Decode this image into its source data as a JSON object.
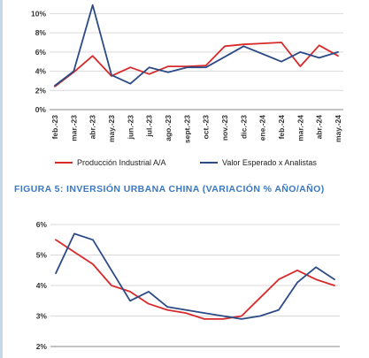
{
  "figure5_title": "FIGURA 5: INVERSIÓN URBANA CHINA (VARIACIÓN % AÑO/AÑO)",
  "colors": {
    "series_red": "#d82a2a",
    "series_blue": "#2c4a86",
    "grid": "#d9d9d9",
    "axis": "#888888"
  },
  "chart_data": [
    {
      "type": "line",
      "title": "",
      "x": [
        "feb.-23",
        "mar.-23",
        "abr.-23",
        "may.-23",
        "jun.-23",
        "jul.-23",
        "ago.-23",
        "sept.-23",
        "oct.-23",
        "nov.-23",
        "dic.-23",
        "ene.-24",
        "feb.-24",
        "mar.-24",
        "abr.-24",
        "may.-24"
      ],
      "x_tick_labels": [
        "feb.-23",
        "mar.-23",
        "abr.-23",
        "may.-23",
        "jun.-23",
        "jul.-23",
        "ago.-23",
        "sept.-23",
        "oct.-23",
        "nov.-23",
        "dic.-23",
        "ene.-24",
        "feb.-24",
        "mar.-24",
        "abr.-24",
        "may.-24"
      ],
      "y_tick_labels": [
        "0%",
        "2%",
        "4%",
        "6%",
        "8%",
        "10%"
      ],
      "ylim": [
        0,
        10.5
      ],
      "yticks": [
        0,
        2,
        4,
        6,
        8,
        10
      ],
      "grid": true,
      "legend_position": "bottom",
      "series": [
        {
          "name": "Producción Industrial A/A",
          "color": "#d82a2a",
          "values": [
            2.4,
            3.9,
            5.6,
            3.5,
            4.4,
            3.7,
            4.5,
            4.5,
            4.6,
            6.6,
            6.8,
            6.9,
            7.0,
            4.5,
            6.7,
            5.6
          ]
        },
        {
          "name": "Valor Esperado x Analistas",
          "color": "#2c4a86",
          "values": [
            2.5,
            4.0,
            10.9,
            3.6,
            2.7,
            4.4,
            3.9,
            4.4,
            4.4,
            5.5,
            6.6,
            5.8,
            5.0,
            6.0,
            5.4,
            6.0
          ]
        }
      ]
    },
    {
      "type": "line",
      "title": "FIGURA 5: INVERSIÓN URBANA CHINA (VARIACIÓN % AÑO/AÑO)",
      "y_tick_labels": [
        "2%",
        "3%",
        "4%",
        "5%",
        "6%"
      ],
      "ylim": [
        2,
        6
      ],
      "yticks": [
        2,
        3,
        4,
        5,
        6
      ],
      "grid": true,
      "point_count": 16,
      "series": [
        {
          "color": "#d82a2a",
          "values": [
            5.5,
            5.1,
            4.7,
            4.0,
            3.8,
            3.4,
            3.2,
            3.1,
            2.9,
            2.9,
            3.0,
            3.6,
            4.2,
            4.5,
            4.2,
            4.0
          ]
        },
        {
          "color": "#2c4a86",
          "values": [
            4.4,
            5.7,
            5.5,
            4.5,
            3.5,
            3.8,
            3.3,
            3.2,
            3.1,
            3.0,
            2.9,
            3.0,
            3.2,
            4.1,
            4.6,
            4.2
          ]
        }
      ],
      "x_tick_labels": [
        "",
        "",
        "",
        "",
        "",
        "",
        "",
        "",
        "",
        "",
        "",
        "",
        "",
        "",
        "",
        ""
      ]
    }
  ]
}
